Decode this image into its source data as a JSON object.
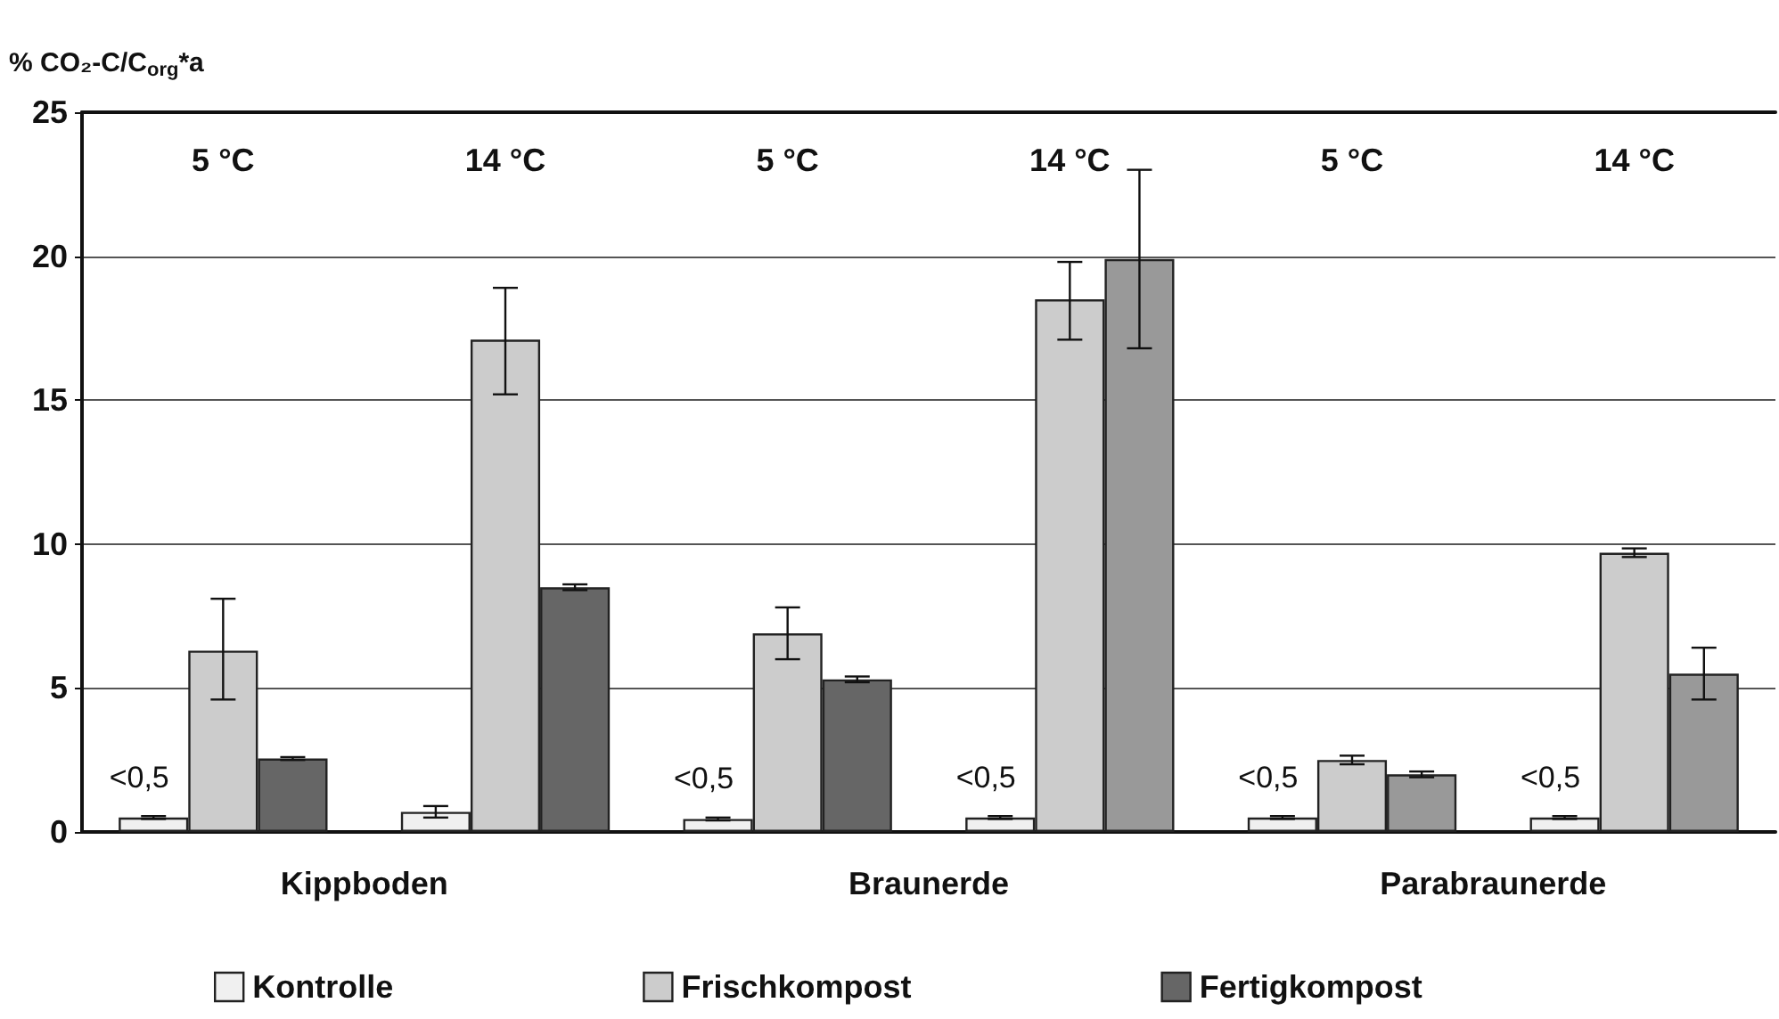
{
  "chart_data": {
    "type": "bar",
    "ylabel": "% CO₂-C/C$_{org}$*a",
    "categories": [
      "5 °C",
      "14 °C",
      "5 °C",
      "14 °C",
      "5 °C",
      "14 °C"
    ],
    "series": [
      {
        "name": "Kontrolle",
        "color": "#f0f0f0",
        "values": [
          0.5,
          0.7,
          0.45,
          0.5,
          0.5,
          0.5
        ],
        "errors": [
          0.05,
          0.2,
          0.05,
          0.05,
          0.05,
          0.05
        ],
        "value_labels": [
          "<0,5",
          null,
          "<0,5",
          "<0,5",
          "<0,5",
          "<0,5"
        ]
      },
      {
        "name": "Frischkompost",
        "color": "#cccccc",
        "values": [
          6.3,
          17.1,
          6.9,
          18.5,
          2.5,
          9.7
        ],
        "errors": [
          [
            4.6,
            8.1
          ],
          [
            15.2,
            18.9
          ],
          [
            6.0,
            7.8
          ],
          [
            17.1,
            19.8
          ],
          0.15,
          0.15
        ]
      },
      {
        "name": "Fertigkompost",
        "color": "#666666",
        "colors": [
          "#666666",
          "#666666",
          "#666666",
          "#999999",
          "#999999",
          "#999999"
        ],
        "values": [
          2.55,
          8.5,
          5.3,
          19.9,
          2.0,
          5.5
        ],
        "errors": [
          0.05,
          0.1,
          0.1,
          [
            16.8,
            23.0
          ],
          0.1,
          [
            4.6,
            6.4
          ]
        ]
      }
    ],
    "annotations": [
      "Kippboden",
      "Braunerde",
      "Parabraunerde"
    ],
    "ylim": [
      0,
      25
    ],
    "yticks": [
      0,
      5,
      10,
      15,
      20,
      25
    ],
    "grid": "y",
    "legend": "bottom"
  }
}
